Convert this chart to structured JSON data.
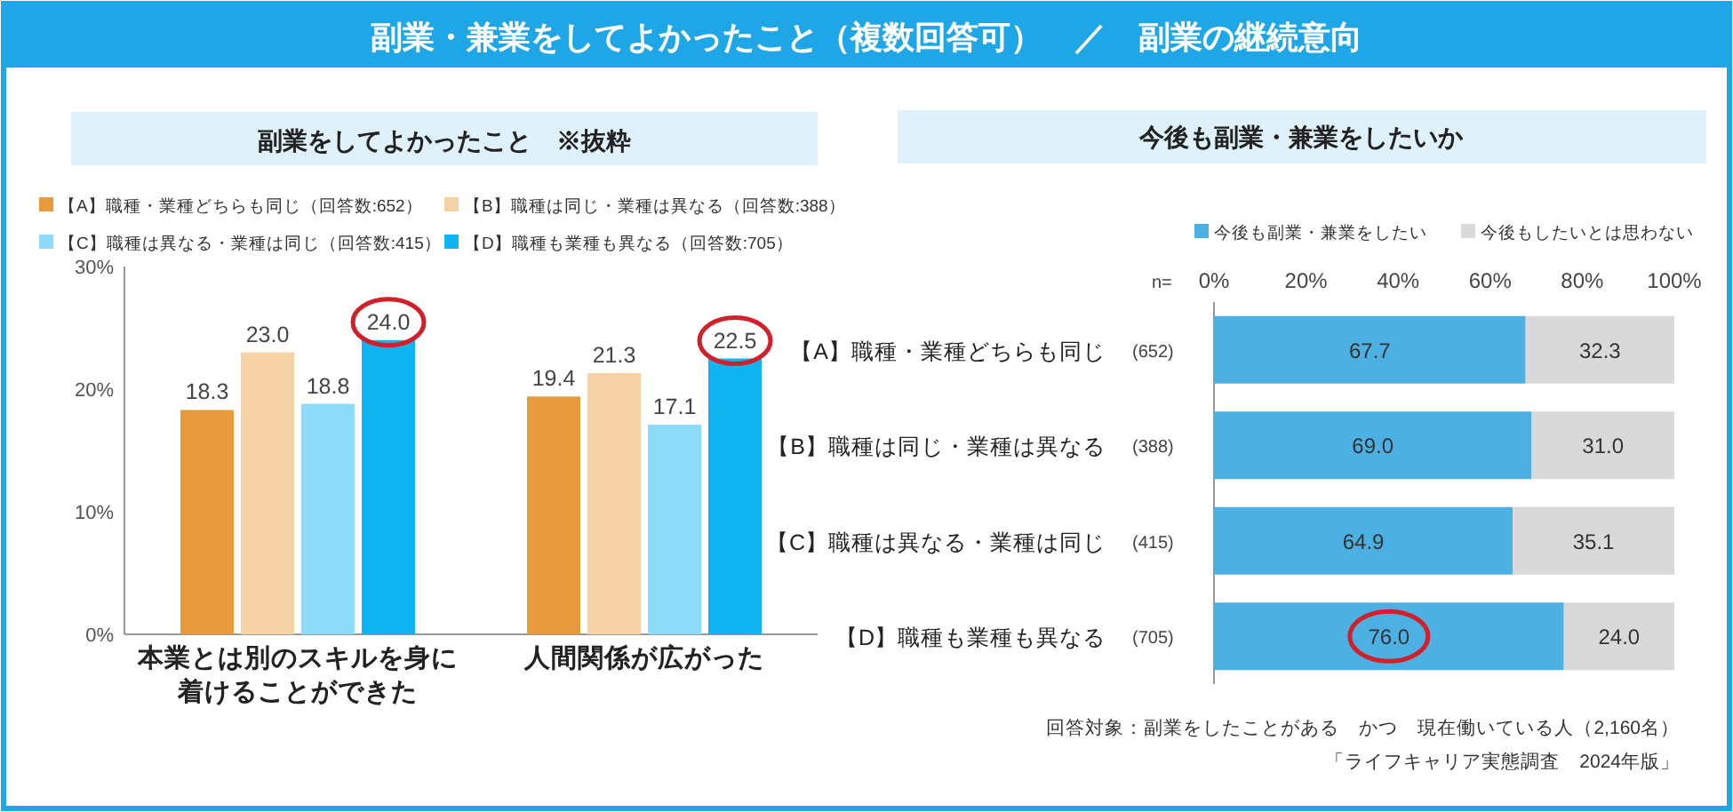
{
  "chart_data": [
    {
      "type": "bar",
      "title": "副業・兼業をしてよかったこと（複数回答可）　／　副業の継続意向",
      "subtitle": "副業をしてよかったこと　※抜粋",
      "categories": [
        "本業とは別のスキルを身に着けることができた",
        "人間関係が広がった"
      ],
      "series": [
        {
          "name": "【A】職種・業種どちらも同じ（回答数:652）",
          "color": "#e89b3c",
          "values": [
            18.3,
            19.4
          ],
          "value_labels": [
            "18.3",
            "19.4"
          ]
        },
        {
          "name": "【B】職種は同じ・業種は異なる（回答数:388）",
          "color": "#f7d2a6",
          "values": [
            23.0,
            21.3
          ],
          "value_labels": [
            "23.0",
            "21.3"
          ]
        },
        {
          "name": "【C】職種は異なる・業種は同じ（回答数:415）",
          "color": "#8ddcfa",
          "values": [
            18.8,
            17.1
          ],
          "value_labels": [
            "18.8",
            "17.1"
          ]
        },
        {
          "name": "【D】職種も業種も異なる（回答数:705）",
          "color": "#10b4f0",
          "values": [
            24.0,
            22.5
          ],
          "value_labels": [
            "24.0",
            "22.5"
          ]
        }
      ],
      "ylim": [
        0,
        30
      ],
      "yticks": [
        {
          "value": 0,
          "label": "0%"
        },
        {
          "value": 10,
          "label": "10%"
        },
        {
          "value": 20,
          "label": "20%"
        },
        {
          "value": 30,
          "label": "30%"
        }
      ],
      "legend": "top"
    },
    {
      "type": "bar",
      "title": "今後も副業・兼業をしたいか",
      "orientation": "horizontal",
      "stacked": true,
      "categories": [
        "【A】職種・業種どちらも同じ",
        "【B】職種は同じ・業種は異なる",
        "【C】職種は異なる・業種は同じ",
        "【D】職種も業種も異なる"
      ],
      "series": [
        {
          "name": "今後も副業・兼業をしたい",
          "color": "#4db0e2",
          "values": [
            67.7,
            69.0,
            64.9,
            76.0
          ],
          "value_labels": [
            "67.7",
            "69.0",
            "64.9",
            "76.0"
          ]
        },
        {
          "name": "今後もしたいとは思わない",
          "color": "#d9d9d9",
          "values": [
            32.3,
            31.0,
            35.1,
            24.0
          ],
          "value_labels": [
            "32.3",
            "31.0",
            "35.1",
            "24.0"
          ]
        }
      ],
      "xlim": [
        0,
        100
      ],
      "xticks": [
        {
          "value": 0,
          "label": "0%"
        },
        {
          "value": 20,
          "label": "20%"
        },
        {
          "value": 40,
          "label": "40%"
        },
        {
          "value": 60,
          "label": "60%"
        },
        {
          "value": 80,
          "label": "80%"
        },
        {
          "value": 100,
          "label": "100%"
        }
      ],
      "legend": "top",
      "annotations": [
        "n=",
        "(652)",
        "(388)",
        "(415)",
        "(705)",
        "回答対象：副業をしたことがある　かつ　現在働いている人（2,160名）",
        "「ライフキャリア実態調査　2024年版」"
      ]
    }
  ]
}
